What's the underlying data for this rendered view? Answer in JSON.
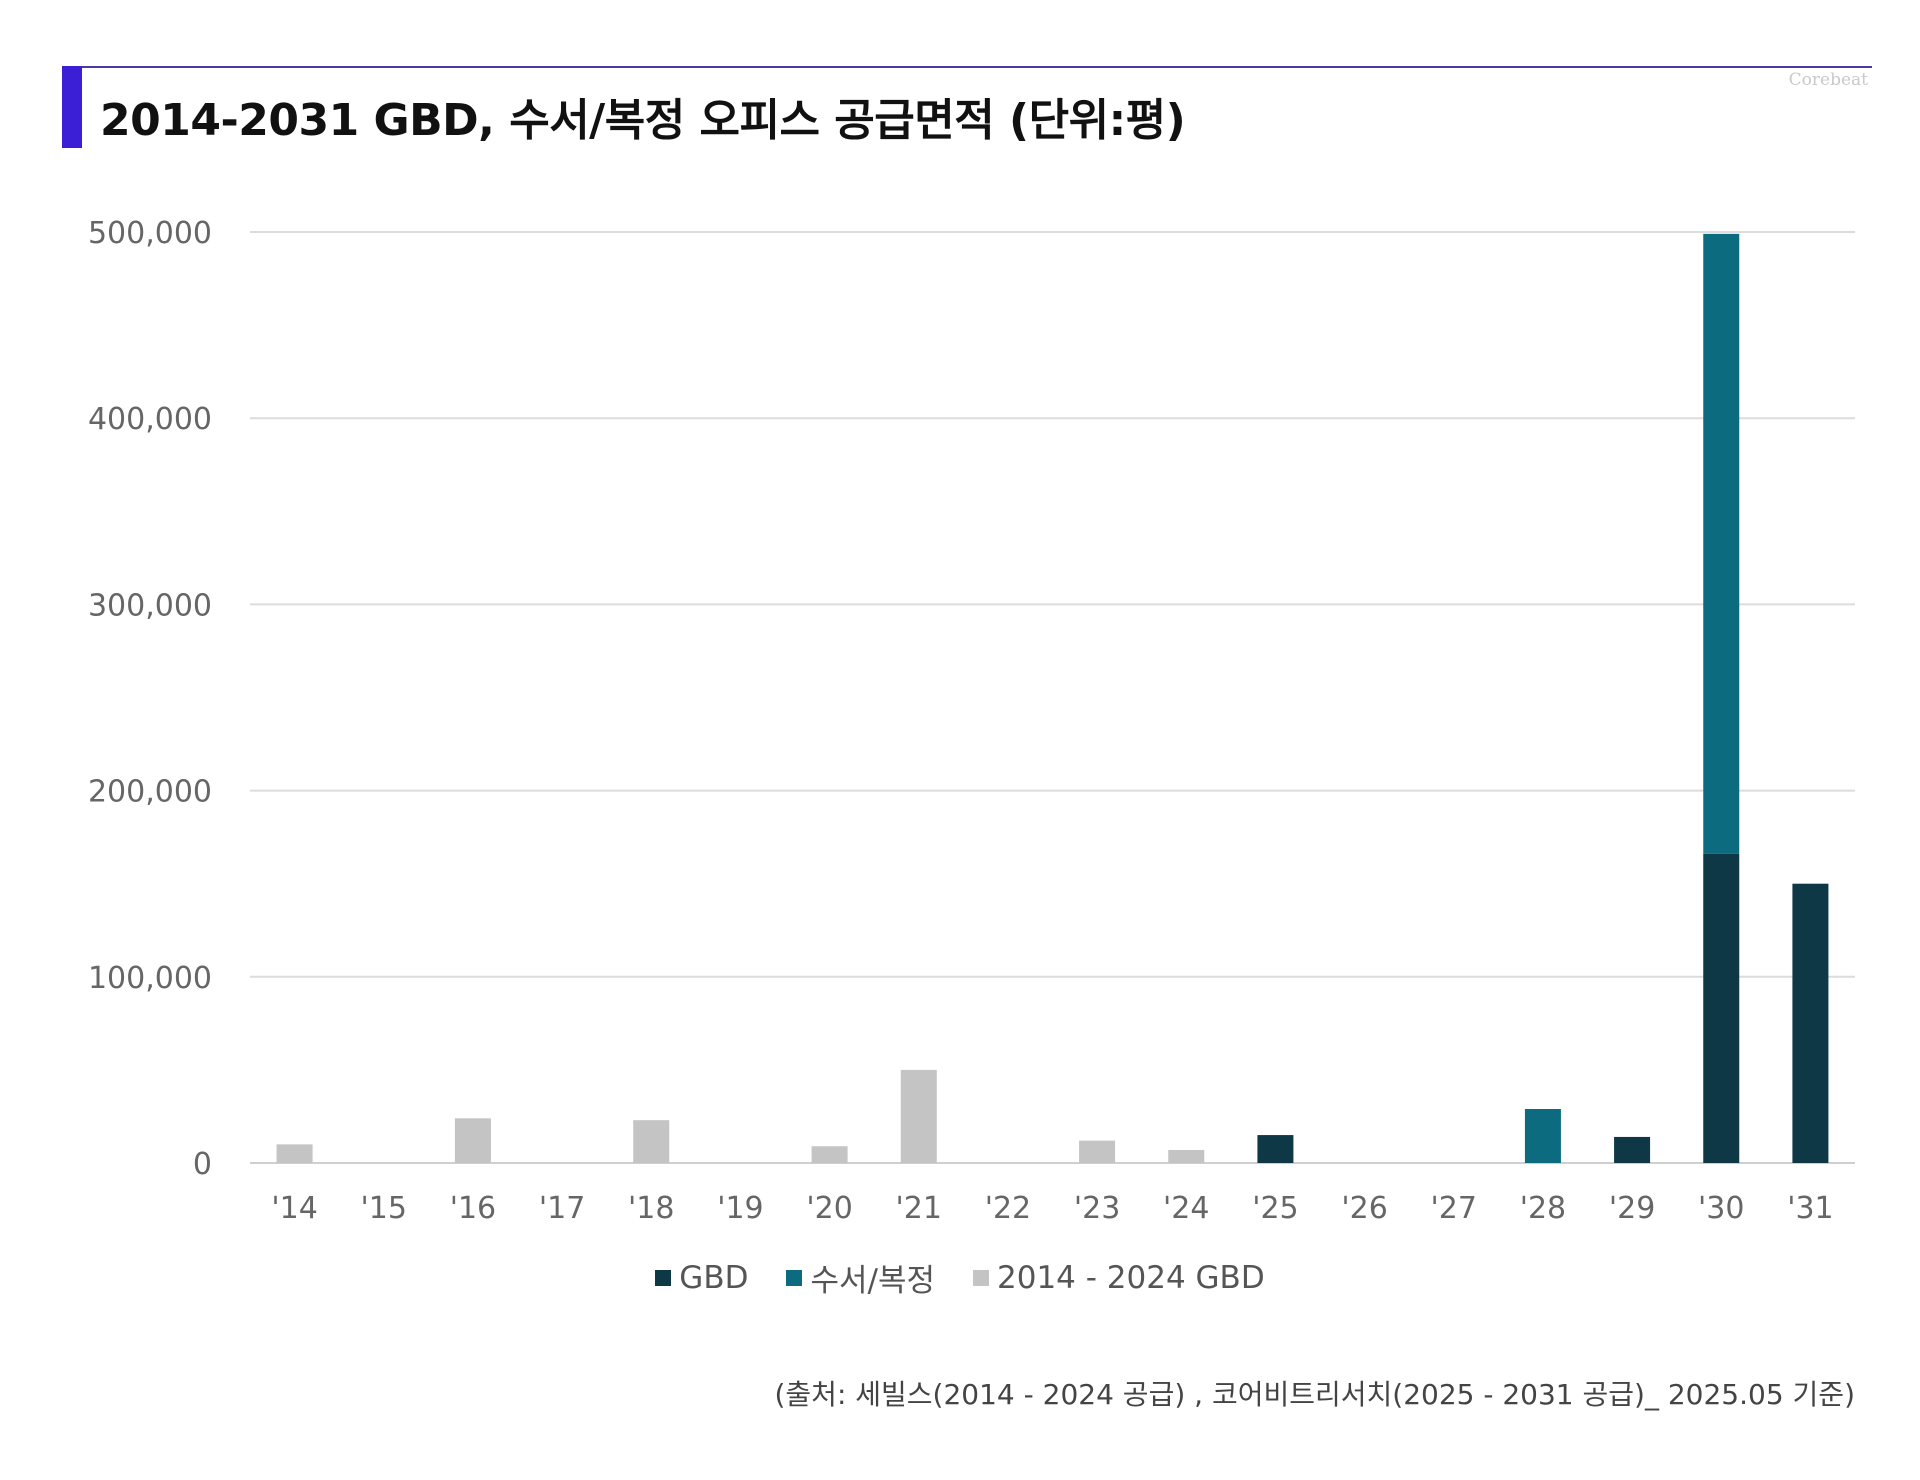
{
  "header": {
    "title": "2014-2031 GBD, 수서/복정 오피스 공급면적 (단위:평)",
    "brand": "Corebeat"
  },
  "colors": {
    "gbd": "#0e3845",
    "suseo": "#0d6b7f",
    "past": "#c4c4c4",
    "grid": "#dcdcdc",
    "accent": "#3b1fd6"
  },
  "chart_data": {
    "type": "bar",
    "stacked": true,
    "categories": [
      "'14",
      "'15",
      "'16",
      "'17",
      "'18",
      "'19",
      "'20",
      "'21",
      "'22",
      "'23",
      "'24",
      "'25",
      "'26",
      "'27",
      "'28",
      "'29",
      "'30",
      "'31"
    ],
    "series": [
      {
        "name": "GBD",
        "color": "#0e3845",
        "values": [
          0,
          0,
          0,
          0,
          0,
          0,
          0,
          0,
          0,
          0,
          0,
          15000,
          0,
          0,
          0,
          14000,
          166000,
          150000
        ]
      },
      {
        "name": "수서/복정",
        "color": "#0d6b7f",
        "values": [
          0,
          0,
          0,
          0,
          0,
          0,
          0,
          0,
          0,
          0,
          0,
          0,
          0,
          0,
          29000,
          0,
          333000,
          0
        ]
      },
      {
        "name": "2014 - 2024 GBD",
        "color": "#c4c4c4",
        "values": [
          10000,
          0,
          24000,
          0,
          23000,
          0,
          9000,
          50000,
          0,
          12000,
          7000,
          0,
          0,
          0,
          0,
          0,
          0,
          0
        ]
      }
    ],
    "ylim": [
      0,
      500000
    ],
    "yticks": [
      0,
      100000,
      200000,
      300000,
      400000,
      500000
    ],
    "ytick_labels": [
      "0",
      "100,000",
      "200,000",
      "300,000",
      "400,000",
      "500,000"
    ],
    "grid": true,
    "legend_position": "bottom"
  },
  "footer": {
    "source": "(출처: 세빌스(2014 - 2024 공급) , 코어비트리서치(2025 - 2031 공급)_ 2025.05 기준)"
  }
}
